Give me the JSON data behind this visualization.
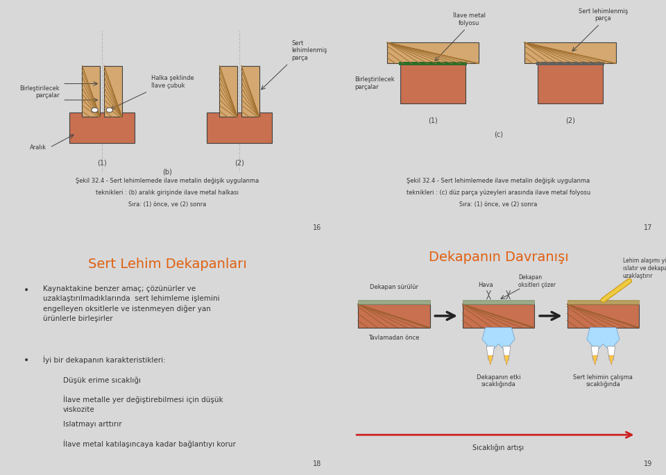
{
  "bg_color": "#d8d8d8",
  "panel_bg": "#ffffff",
  "border_color": "#999999",
  "copper_color": "#c87050",
  "tan_color": "#d4a870",
  "tan_dark": "#c49860",
  "green_color": "#2a6e2a",
  "dark_gray": "#404040",
  "mid_gray": "#888888",
  "orange_title": "#e06010",
  "red_arrow": "#cc2020",
  "page_numbers": [
    "16",
    "17",
    "18",
    "19"
  ],
  "p16_line1": "Şekil 32.4 - Sert lehimlemede ilave metalin değişik uygulanma",
  "p16_line2": "teknikleri : (b) aralık girişinde ilave metal halkası",
  "p16_line3": "Sıra: (1) önce, ve (2) sonra",
  "p17_line1": "Şekil 32.4 - Sert lehimlemede ilave metalin değişik uygulanma",
  "p17_line2": "teknikleri : (c) düz parça yüzeyleri arasında ilave metal folyosu",
  "p17_line3": "Sıra: (1) önce, ve (2) sonra",
  "p18_title": "Sert Lehim Dekapanları",
  "p18_b1": "Kaynaktakine benzer amaç; çözünürler ve\nuzaklaştırılmadıklarında  sert lehimleme işlemini\nengelleyen oksitlerle ve istenmeyen diğer yan\nürünlerle birleşirler",
  "p18_b2": "İyi bir dekapanın karakteristikleri:",
  "p18_s1": "Düşük erime sıcaklığı",
  "p18_s2": "İlave metalle yer değiştirebilmesi için düşük\nviskozite",
  "p18_s3": "Islatmayı arttırır",
  "p18_s4": "İlave metal katılaşıncaya kadar bağlantıyı korur",
  "p19_title": "Dekapanın Davranışı",
  "p16_birles": "Birleştirilecek\nparçalar",
  "p16_aralik": "Aralık",
  "p16_halka": "Halka şeklinde\nİlave çubuk",
  "p16_sert": "Sert\nlehimlenmiş\nparça",
  "p17_folyo": "İlave metal\nfolyosu",
  "p17_sert": "Sert lehimlenmiş\nparça",
  "p17_birles": "Birleştirilecek\nparçalar",
  "p19_dekapan": "Dekapan sürülür",
  "p19_hava": "Hava",
  "p19_oksit": "Dekapan\noksitleri çözer",
  "p19_lehim_lbl": "Lehim alaşımı yüzeyi\nıslatır ve dekapanı\nuzaklaştırır",
  "p19_tavla": "Tavlamadan önce",
  "p19_etki": "Dekapanın etki\nsıcaklığında",
  "p19_calisma": "Sert lehimin çalışma\nsıcaklığında",
  "p19_sicaklik": "Sıcaklığın artışı"
}
